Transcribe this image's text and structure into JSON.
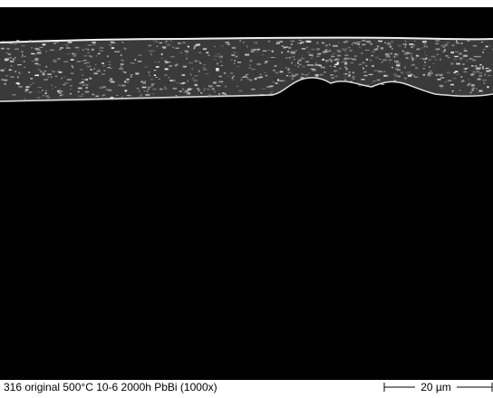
{
  "caption": "316 original 500°C  10-6 2000h PbBi (1000x)",
  "scale_bar": {
    "label": "20 µm"
  }
}
